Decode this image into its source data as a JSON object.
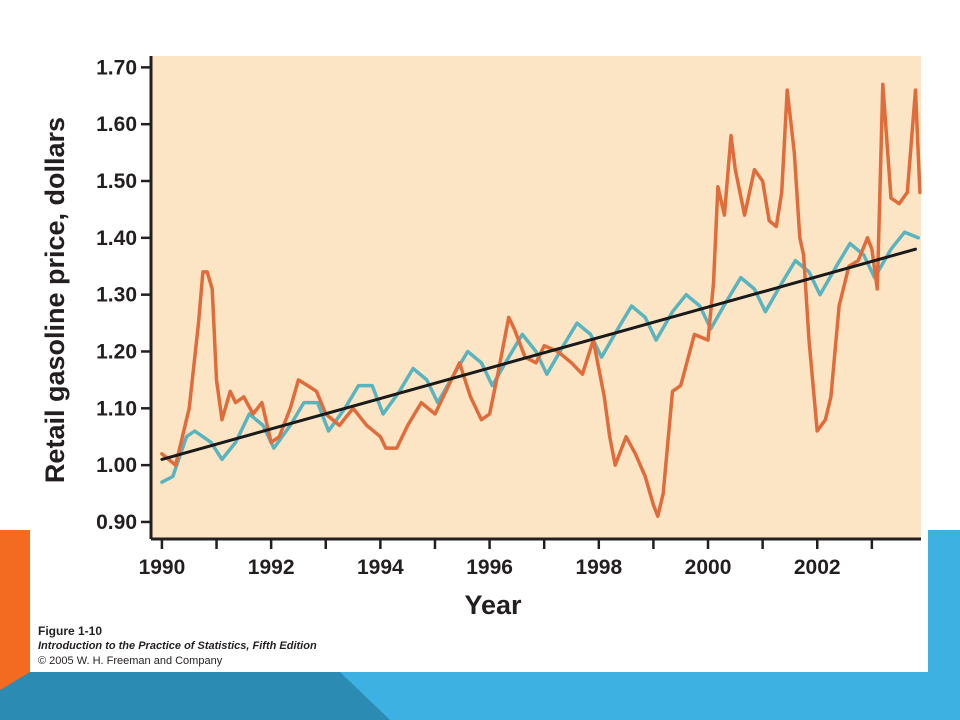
{
  "colors": {
    "plot_bg": "#fce5c4",
    "series_actual": "#e06c3c",
    "series_seasonal": "#5ab4bf",
    "trend_line": "#1a1a1a",
    "slide_accent_orange": "#f26b21",
    "slide_accent_blue": "#3cb1e2",
    "slide_accent_teal": "#2c8bb3"
  },
  "caption": {
    "figure": "Figure 1-10",
    "book": "Introduction to the Practice of Statistics, Fifth Edition",
    "copyright": "© 2005 W. H. Freeman and Company"
  },
  "chart_data": {
    "type": "line",
    "title": "",
    "xlabel": "Year",
    "ylabel": "Retail gasoline price, dollars",
    "xlim": [
      1989.8,
      2003.9
    ],
    "ylim": [
      0.87,
      1.72
    ],
    "x_ticks": [
      1990,
      1992,
      1994,
      1996,
      1998,
      2000,
      2002
    ],
    "y_ticks": [
      "0.90",
      "1.00",
      "1.10",
      "1.20",
      "1.30",
      "1.40",
      "1.50",
      "1.60",
      "1.70"
    ],
    "grid": false,
    "legend": "none",
    "series": [
      {
        "style": "actual",
        "x": [
          1990.0,
          1990.25,
          1990.5,
          1990.67,
          1990.75,
          1990.83,
          1990.92,
          1991.0,
          1991.1,
          1991.25,
          1991.35,
          1991.5,
          1991.67,
          1991.83,
          1992.0,
          1992.15,
          1992.35,
          1992.5,
          1992.67,
          1992.83,
          1993.0,
          1993.25,
          1993.5,
          1993.75,
          1994.0,
          1994.1,
          1994.3,
          1994.5,
          1994.75,
          1995.0,
          1995.25,
          1995.45,
          1995.65,
          1995.85,
          1996.0,
          1996.15,
          1996.35,
          1996.45,
          1996.65,
          1996.85,
          1997.0,
          1997.25,
          1997.5,
          1997.7,
          1997.9,
          1998.0,
          1998.1,
          1998.2,
          1998.3,
          1998.5,
          1998.67,
          1998.85,
          1999.0,
          1999.08,
          1999.18,
          1999.35,
          1999.5,
          1999.75,
          2000.0,
          2000.1,
          2000.18,
          2000.3,
          2000.42,
          2000.5,
          2000.67,
          2000.85,
          2001.0,
          2001.12,
          2001.25,
          2001.35,
          2001.45,
          2001.58,
          2001.68,
          2001.75,
          2001.85,
          2002.0,
          2002.15,
          2002.25,
          2002.4,
          2002.58,
          2002.75,
          2002.92,
          2003.0,
          2003.1,
          2003.2,
          2003.35,
          2003.5,
          2003.65,
          2003.8,
          2003.88
        ],
        "values": [
          1.02,
          1.0,
          1.1,
          1.25,
          1.34,
          1.34,
          1.31,
          1.15,
          1.08,
          1.13,
          1.11,
          1.12,
          1.09,
          1.11,
          1.04,
          1.05,
          1.1,
          1.15,
          1.14,
          1.13,
          1.09,
          1.07,
          1.1,
          1.07,
          1.05,
          1.03,
          1.03,
          1.07,
          1.11,
          1.09,
          1.14,
          1.18,
          1.12,
          1.08,
          1.09,
          1.16,
          1.26,
          1.24,
          1.19,
          1.18,
          1.21,
          1.2,
          1.18,
          1.16,
          1.22,
          1.17,
          1.12,
          1.05,
          1.0,
          1.05,
          1.02,
          0.98,
          0.93,
          0.91,
          0.95,
          1.13,
          1.14,
          1.23,
          1.22,
          1.32,
          1.49,
          1.44,
          1.58,
          1.52,
          1.44,
          1.52,
          1.5,
          1.43,
          1.42,
          1.48,
          1.66,
          1.55,
          1.4,
          1.37,
          1.22,
          1.06,
          1.08,
          1.12,
          1.28,
          1.35,
          1.36,
          1.4,
          1.38,
          1.31,
          1.67,
          1.47,
          1.46,
          1.48,
          1.66,
          1.48
        ]
      },
      {
        "style": "seasonal",
        "x": [
          1990.0,
          1990.2,
          1990.45,
          1990.6,
          1990.75,
          1990.9,
          1991.1,
          1991.35,
          1991.6,
          1991.85,
          1992.05,
          1992.35,
          1992.6,
          1992.85,
          1993.05,
          1993.35,
          1993.6,
          1993.85,
          1994.05,
          1994.35,
          1994.6,
          1994.85,
          1995.05,
          1995.35,
          1995.6,
          1995.85,
          1996.05,
          1996.35,
          1996.6,
          1996.85,
          1997.05,
          1997.35,
          1997.6,
          1997.85,
          1998.05,
          1998.35,
          1998.6,
          1998.85,
          1999.05,
          1999.35,
          1999.6,
          1999.85,
          2000.05,
          2000.35,
          2000.6,
          2000.85,
          2001.05,
          2001.35,
          2001.6,
          2001.85,
          2002.05,
          2002.35,
          2002.6,
          2002.85,
          2003.05,
          2003.35,
          2003.6,
          2003.85
        ],
        "values": [
          0.97,
          0.98,
          1.05,
          1.06,
          1.05,
          1.04,
          1.01,
          1.04,
          1.09,
          1.07,
          1.03,
          1.07,
          1.11,
          1.11,
          1.06,
          1.1,
          1.14,
          1.14,
          1.09,
          1.13,
          1.17,
          1.15,
          1.11,
          1.16,
          1.2,
          1.18,
          1.14,
          1.19,
          1.23,
          1.2,
          1.16,
          1.21,
          1.25,
          1.23,
          1.19,
          1.24,
          1.28,
          1.26,
          1.22,
          1.27,
          1.3,
          1.28,
          1.24,
          1.29,
          1.33,
          1.31,
          1.27,
          1.32,
          1.36,
          1.34,
          1.3,
          1.35,
          1.39,
          1.37,
          1.33,
          1.38,
          1.41,
          1.4
        ]
      },
      {
        "style": "trend",
        "x": [
          1990.0,
          2003.8
        ],
        "values": [
          1.01,
          1.38
        ]
      }
    ]
  }
}
